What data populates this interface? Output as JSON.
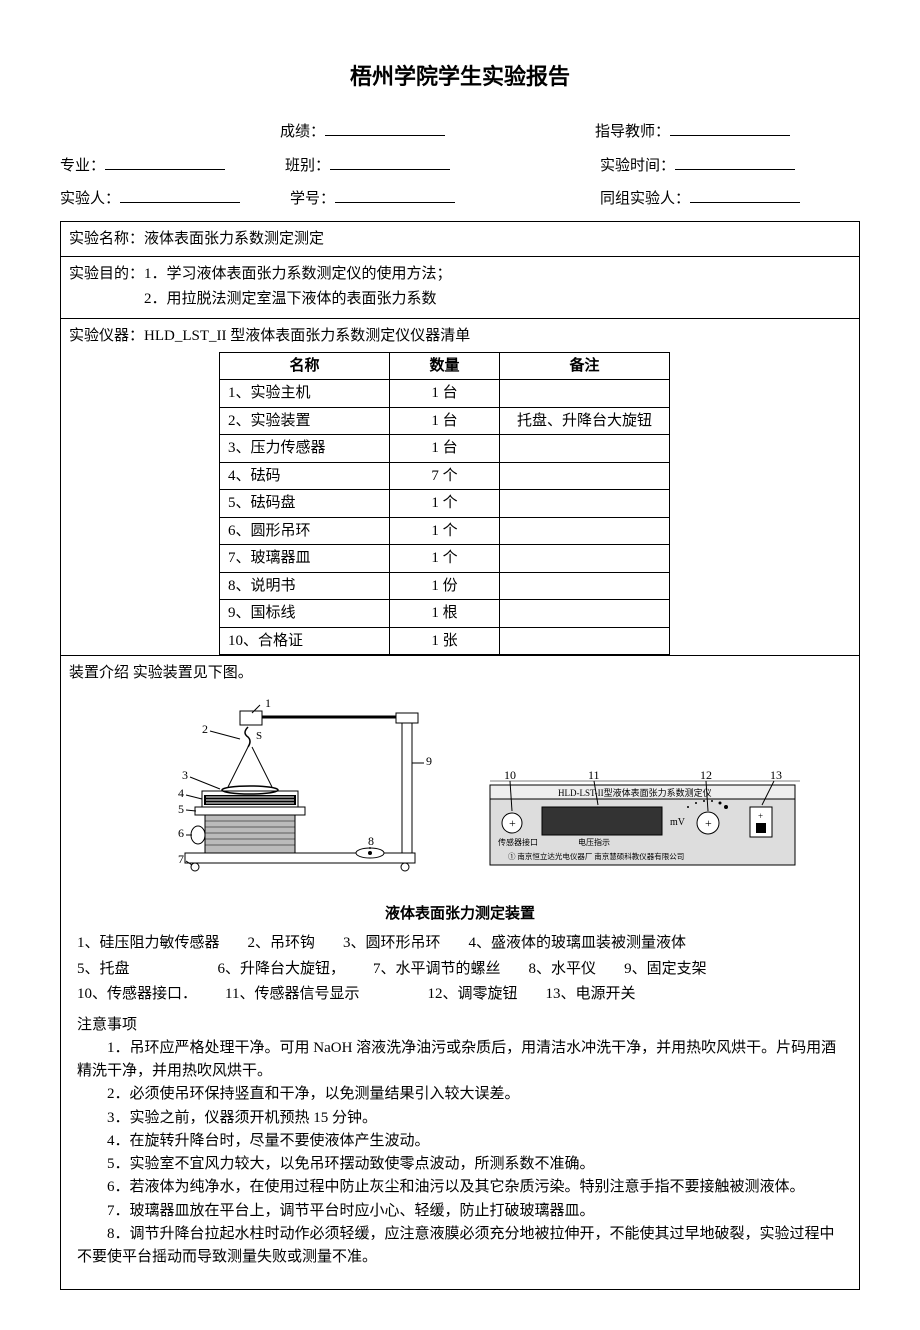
{
  "title": "梧州学院学生实验报告",
  "header": {
    "score": "成绩：",
    "teacher": "指导教师：",
    "major": "专业：",
    "class": "班别：",
    "time": "实验时间：",
    "person": "实验人：",
    "sid": "学号：",
    "partner": "同组实验人："
  },
  "exp_name_label": "实验名称：",
  "exp_name": "液体表面张力系数测定测定",
  "purpose_label": "实验目的：",
  "purpose1": "1．学习液体表面张力系数测定仪的使用方法；",
  "purpose2": "2．用拉脱法测定室温下液体的表面张力系数",
  "equip_label": "实验仪器：",
  "equip_desc": "HLD_LST_II 型液体表面张力系数测定仪仪器清单",
  "equip_table": {
    "h_name": "名称",
    "h_qty": "数量",
    "h_note": "备注",
    "rows": [
      {
        "name": "1、实验主机",
        "qty": "1 台",
        "note": ""
      },
      {
        "name": "2、实验装置",
        "qty": "1 台",
        "note": "托盘、升降台大旋钮"
      },
      {
        "name": "3、压力传感器",
        "qty": "1 台",
        "note": ""
      },
      {
        "name": "4、砝码",
        "qty": "7 个",
        "note": ""
      },
      {
        "name": "5、砝码盘",
        "qty": "1 个",
        "note": ""
      },
      {
        "name": "6、圆形吊环",
        "qty": "1 个",
        "note": ""
      },
      {
        "name": "7、玻璃器皿",
        "qty": "1 个",
        "note": ""
      },
      {
        "name": "8、说明书",
        "qty": "1 份",
        "note": ""
      },
      {
        "name": "9、国标线",
        "qty": "1 根",
        "note": ""
      },
      {
        "name": "10、合格证",
        "qty": "1 张",
        "note": ""
      }
    ]
  },
  "device_intro": "装置介绍 实验装置见下图。",
  "diagram": {
    "caption": "液体表面张力测定装置",
    "panel_title": "HLD-LST-II型液体表面张力系数测定仪",
    "panel_sensor": "传感器接口",
    "panel_voltage": "电压指示",
    "panel_mv": "mV",
    "panel_maker": "① 南京恒立达光电仪器厂 南京慧硕科教仪器有限公司",
    "labels": [
      "1",
      "2",
      "3",
      "4",
      "5",
      "6",
      "7",
      "8",
      "9",
      "10",
      "11",
      "12",
      "13"
    ]
  },
  "legend": [
    "1、硅压阻力敏传感器",
    "2、吊环钩",
    "3、圆环形吊环",
    "4、盛液体的玻璃皿装被测量液体",
    "5、托盘",
    "6、升降台大旋钮，",
    "7、水平调节的螺丝",
    "8、水平仪",
    "9、固定支架",
    "10、传感器接口．",
    "11、传感器信号显示",
    "12、调零旋钮",
    "13、电源开关"
  ],
  "notes_title": "注意事项",
  "notes": [
    "1．吊环应严格处理干净。可用 NaOH 溶液洗净油污或杂质后，用清洁水冲洗干净，并用热吹风烘干。片码用酒精洗干净，并用热吹风烘干。",
    "2．必须使吊环保持竖直和干净，以免测量结果引入较大误差。",
    "3．实验之前，仪器须开机预热 15 分钟。",
    "4．在旋转升降台时，尽量不要使液体产生波动。",
    "5．实验室不宜风力较大，以免吊环摆动致使零点波动，所测系数不准确。",
    "6．若液体为纯净水，在使用过程中防止灰尘和油污以及其它杂质污染。特别注意手指不要接触被测液体。",
    "7．玻璃器皿放在平台上，调节平台时应小心、轻缓，防止打破玻璃器皿。",
    "8．调节升降台拉起水柱时动作必须轻缓，应注意液膜必须充分地被拉伸开，不能使其过早地破裂，实验过程中不要使平台摇动而导致测量失败或测量不准。"
  ]
}
